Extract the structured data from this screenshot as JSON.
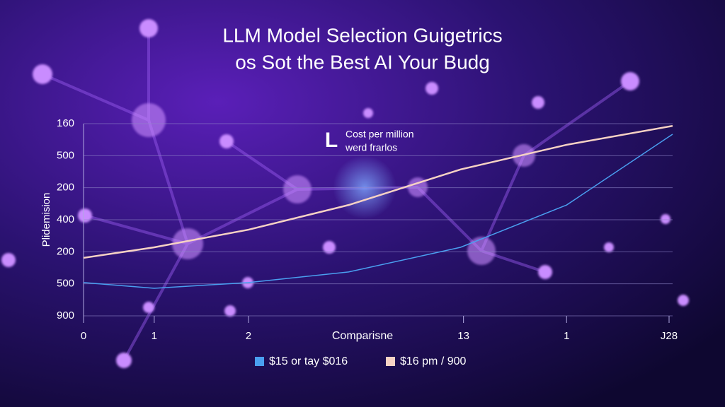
{
  "chart_data": {
    "type": "line",
    "title": [
      "LLM Model Selection Guigetrics",
      "os Sot the Best AI Your Budg"
    ],
    "ylabel": "Plidemision",
    "xlabel": "Comparisne",
    "annotation": {
      "mark": "L",
      "lines": [
        "Cost per million",
        "werd frarlos"
      ]
    },
    "x": [
      0,
      12,
      28,
      45,
      64,
      82,
      100
    ],
    "xlim": [
      0,
      100
    ],
    "xticks": [
      0,
      {
        "value": 12,
        "label": "1"
      },
      {
        "value": 28,
        "label": "2"
      },
      {
        "value": 64.5,
        "label": "13"
      },
      {
        "value": 82,
        "label": "1"
      },
      {
        "value": 99.4,
        "label": "J28"
      }
    ],
    "ylim": [
      0,
      6
    ],
    "yticks": [
      {
        "value": 6,
        "label": "160"
      },
      {
        "value": 5,
        "label": "500"
      },
      {
        "value": 4,
        "label": "200"
      },
      {
        "value": 3,
        "label": "400"
      },
      {
        "value": 2,
        "label": "200"
      },
      {
        "value": 1,
        "label": "500"
      },
      {
        "value": 0,
        "label": "900"
      }
    ],
    "grid": true,
    "series": [
      {
        "name": "$15 or tay $016",
        "color": "#4a9ff0",
        "values": [
          1.04,
          0.86,
          1.04,
          1.37,
          2.14,
          3.46,
          5.67
        ]
      },
      {
        "name": "$16 pm / 900",
        "color": "#f7d2c4",
        "values": [
          1.81,
          2.14,
          2.69,
          3.46,
          4.57,
          5.34,
          5.93
        ]
      }
    ]
  }
}
